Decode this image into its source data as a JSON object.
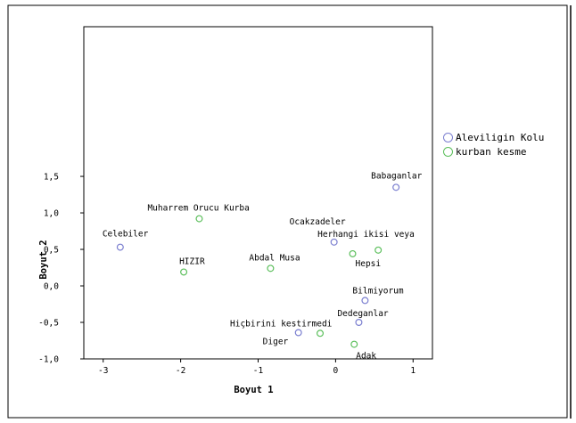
{
  "chart_data": {
    "type": "scatter",
    "xlabel": "Boyut 1",
    "ylabel": "Boyut 2",
    "xlim": [
      -3.25,
      1.25
    ],
    "ylim": [
      -1.0,
      3.55
    ],
    "x_ticks": [
      -3,
      -2,
      -1,
      0,
      1
    ],
    "x_tick_labels": [
      "-3",
      "-2",
      "-1",
      "0",
      "1"
    ],
    "y_ticks": [
      -1.0,
      -0.5,
      0.0,
      0.5,
      1.0,
      1.5
    ],
    "y_tick_labels": [
      "-1,0",
      "-0,5",
      "0,0",
      "0,5",
      "1,0",
      "1,5"
    ],
    "legend_position": "right",
    "grid": false,
    "series": [
      {
        "name": "Aleviligin Kolu",
        "color": "#7b7fd0",
        "points": [
          {
            "label": "Babaganlar",
            "x": 0.78,
            "y": 1.35
          },
          {
            "label": "Celebiler",
            "x": -2.78,
            "y": 0.53
          },
          {
            "label": "Ocakzadeler",
            "x": -0.02,
            "y": 0.6
          },
          {
            "label": "Bilmiyorum",
            "x": 0.38,
            "y": -0.2
          },
          {
            "label": "Dedeganlar",
            "x": 0.3,
            "y": -0.5
          },
          {
            "label": "Diger",
            "x": -0.48,
            "y": -0.64
          }
        ]
      },
      {
        "name": "kurban kesme",
        "color": "#5cbf5c",
        "points": [
          {
            "label": "Muharrem Orucu Kurba",
            "x": -1.76,
            "y": 0.92
          },
          {
            "label": "HIZIR",
            "x": -1.96,
            "y": 0.19
          },
          {
            "label": "Abdal Musa",
            "x": -0.84,
            "y": 0.24
          },
          {
            "label": "Herhangi ikisi veya",
            "x": 0.55,
            "y": 0.49
          },
          {
            "label": "Hepsi",
            "x": 0.22,
            "y": 0.44
          },
          {
            "label": "Hiçbirini kestirmedi",
            "x": -0.2,
            "y": -0.65
          },
          {
            "label": "Adak",
            "x": 0.24,
            "y": -0.8
          }
        ]
      }
    ]
  }
}
